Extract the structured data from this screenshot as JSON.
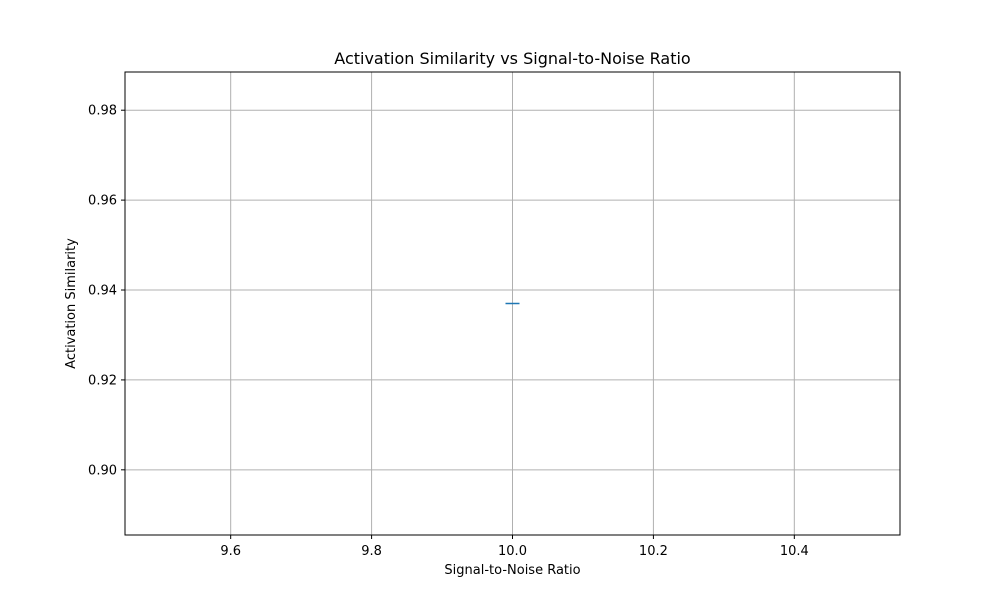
{
  "chart_data": {
    "type": "line",
    "title": "Activation Similarity vs Signal-to-Noise Ratio",
    "xlabel": "Signal-to-Noise Ratio",
    "ylabel": "Activation Similarity",
    "xlim": [
      9.45,
      10.55
    ],
    "ylim": [
      0.8855,
      0.9885
    ],
    "xticks": [
      9.6,
      9.8,
      10.0,
      10.2,
      10.4
    ],
    "xtick_labels": [
      "9.6",
      "9.8",
      "10.0",
      "10.2",
      "10.4"
    ],
    "yticks": [
      0.9,
      0.92,
      0.94,
      0.96,
      0.98
    ],
    "ytick_labels": [
      "0.90",
      "0.92",
      "0.94",
      "0.96",
      "0.98"
    ],
    "grid": true,
    "series": [
      {
        "color": "#1f77b4",
        "marker": "hline",
        "x": [
          10.0
        ],
        "y": [
          0.937
        ]
      }
    ]
  }
}
